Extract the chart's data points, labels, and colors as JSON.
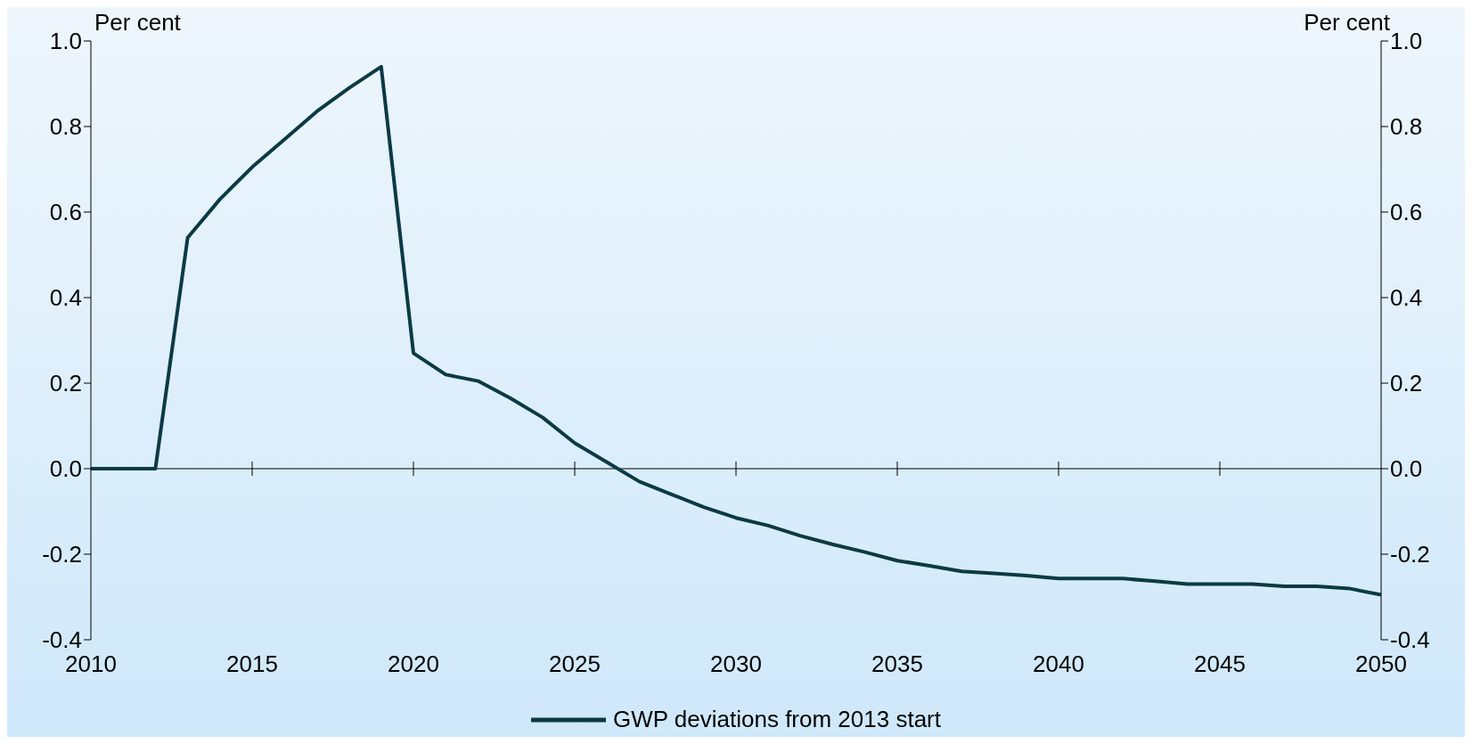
{
  "chart_data": {
    "type": "line",
    "ylabel": "Per cent",
    "y2label": "Per cent",
    "x": [
      2010,
      2011,
      2012,
      2013,
      2014,
      2015,
      2016,
      2017,
      2018,
      2019,
      2020,
      2021,
      2022,
      2023,
      2024,
      2025,
      2026,
      2027,
      2028,
      2029,
      2030,
      2031,
      2032,
      2033,
      2034,
      2035,
      2036,
      2037,
      2038,
      2039,
      2040,
      2041,
      2042,
      2043,
      2044,
      2045,
      2046,
      2047,
      2048,
      2049,
      2050
    ],
    "series": [
      {
        "name": "GWP deviations from 2013 start",
        "color": "#0b3a44",
        "values": [
          0,
          0,
          0,
          0.54,
          0.63,
          0.705,
          0.77,
          0.835,
          0.89,
          0.94,
          0.27,
          0.22,
          0.205,
          0.165,
          0.12,
          0.06,
          0.015,
          -0.03,
          -0.06,
          -0.09,
          -0.115,
          -0.133,
          -0.157,
          -0.177,
          -0.195,
          -0.215,
          -0.227,
          -0.24,
          -0.245,
          -0.25,
          -0.257,
          -0.257,
          -0.257,
          -0.263,
          -0.27,
          -0.27,
          -0.27,
          -0.275,
          -0.275,
          -0.28,
          -0.295
        ]
      }
    ],
    "xlim": [
      2010,
      2050
    ],
    "xticks": [
      2010,
      2015,
      2020,
      2025,
      2030,
      2035,
      2040,
      2045,
      2050
    ],
    "ylim": [
      -0.4,
      1.0
    ],
    "yticks": [
      -0.4,
      -0.2,
      {
        "value": 0,
        "label": "0.0"
      },
      0.2,
      0.4,
      0.6,
      0.8,
      {
        "value": 1,
        "label": "1.0"
      }
    ],
    "y2lim": [
      -0.4,
      1.0
    ],
    "y2ticks": [
      -0.4,
      -0.2,
      {
        "value": 0,
        "label": "0.0"
      },
      0.2,
      0.4,
      0.6,
      0.8,
      {
        "value": 1,
        "label": "1.0"
      }
    ],
    "ref_lines": [
      {
        "axis": "y",
        "value": 0,
        "color": "#000000"
      }
    ],
    "legend": "bottom",
    "marker": "none",
    "line_style": "solid"
  }
}
